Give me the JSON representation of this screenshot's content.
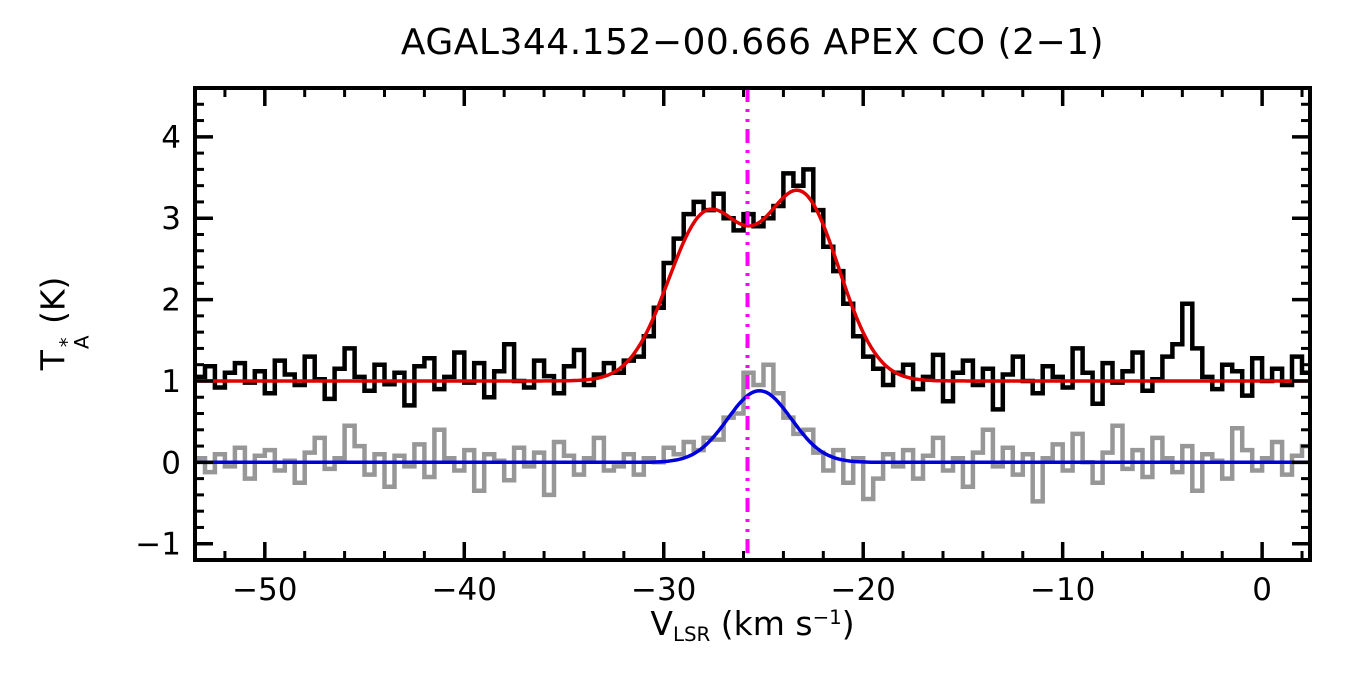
{
  "title": "AGAL344.152−00.666  APEX CO (2−1)",
  "xlabel": {
    "pre": "V",
    "sub": "LSR",
    "mid": " (km s",
    "sup": "−1",
    "post": ")"
  },
  "ylabel": {
    "pre": "T",
    "sup": "*",
    "sub": "A",
    "post": " (K)"
  },
  "chart_data": {
    "type": "line",
    "title": "AGAL344.152−00.666  APEX CO (2−1)",
    "xlabel": "V_LSR (km s^-1)",
    "ylabel": "T_A^* (K)",
    "x_range": [
      -53.5,
      2.4
    ],
    "y_range": [
      -1.2,
      4.6
    ],
    "x_ticks": [
      {
        "v": -50,
        "label": "−50"
      },
      {
        "v": -40,
        "label": "−40"
      },
      {
        "v": -30,
        "label": "−30"
      },
      {
        "v": -20,
        "label": "−20"
      },
      {
        "v": -10,
        "label": "−10"
      },
      {
        "v": 0,
        "label": "0"
      }
    ],
    "y_ticks": [
      {
        "v": -1,
        "label": "−1"
      },
      {
        "v": 0,
        "label": "0"
      },
      {
        "v": 1,
        "label": "1"
      },
      {
        "v": 2,
        "label": "2"
      },
      {
        "v": 3,
        "label": "3"
      },
      {
        "v": 4,
        "label": "4"
      }
    ],
    "x_minor_step": 2,
    "y_minor_step": 0.2,
    "x_start": -53.25,
    "dx": 0.5,
    "series": [
      {
        "name": "observed-spectrum",
        "style": "histogram",
        "color": "#000000",
        "width": 4.5,
        "values": [
          1.05,
          1.18,
          0.92,
          1.1,
          1.22,
          0.98,
          1.12,
          0.85,
          1.25,
          1.08,
          0.95,
          1.3,
          1.02,
          0.78,
          1.15,
          1.4,
          1.05,
          0.88,
          1.2,
          0.96,
          1.1,
          0.7,
          1.18,
          1.28,
          0.9,
          1.05,
          1.35,
          0.98,
          1.22,
          0.8,
          1.12,
          1.45,
          1.0,
          0.92,
          1.25,
          1.06,
          0.85,
          1.18,
          1.38,
          0.95,
          1.08,
          1.22,
          1.1,
          1.25,
          1.3,
          1.55,
          1.9,
          2.45,
          2.75,
          3.05,
          3.2,
          3.1,
          3.3,
          3.0,
          2.85,
          3.05,
          2.9,
          3.0,
          3.15,
          3.55,
          3.4,
          3.6,
          3.1,
          2.65,
          2.35,
          1.95,
          1.55,
          1.3,
          1.15,
          0.95,
          1.1,
          1.2,
          0.9,
          1.05,
          1.32,
          0.75,
          1.1,
          1.25,
          0.95,
          1.15,
          0.65,
          1.08,
          1.3,
          1.0,
          0.85,
          1.18,
          1.05,
          0.92,
          1.4,
          1.1,
          0.72,
          1.22,
          0.98,
          1.12,
          1.35,
          0.88,
          1.02,
          1.3,
          1.45,
          1.95,
          1.4,
          1.05,
          0.9,
          1.2,
          1.12,
          0.82,
          1.28,
          1.0,
          1.15,
          0.95,
          1.3,
          1.1
        ]
      },
      {
        "name": "second-spectrum",
        "style": "histogram",
        "color": "#979797",
        "width": 4.5,
        "values": [
          0.05,
          -0.12,
          0.1,
          -0.05,
          0.18,
          -0.2,
          0.08,
          0.15,
          -0.1,
          0.02,
          -0.25,
          0.12,
          0.3,
          -0.08,
          0.05,
          0.45,
          0.2,
          -0.15,
          0.1,
          -0.3,
          0.08,
          -0.05,
          0.22,
          -0.18,
          0.4,
          0.05,
          -0.1,
          0.15,
          -0.35,
          0.1,
          0.02,
          -0.22,
          0.18,
          -0.05,
          0.12,
          -0.4,
          0.25,
          0.08,
          -0.15,
          0.05,
          0.3,
          -0.1,
          -0.05,
          0.1,
          -0.15,
          0.05,
          0.0,
          0.18,
          0.1,
          0.25,
          0.15,
          0.3,
          0.28,
          0.55,
          0.6,
          1.1,
          0.95,
          1.2,
          0.85,
          0.55,
          0.35,
          0.4,
          0.12,
          -0.1,
          0.15,
          -0.25,
          0.05,
          -0.45,
          -0.2,
          0.1,
          -0.05,
          0.15,
          -0.2,
          0.08,
          0.3,
          -0.1,
          0.05,
          -0.3,
          0.12,
          0.4,
          -0.05,
          0.18,
          -0.15,
          0.1,
          -0.48,
          0.05,
          0.22,
          -0.1,
          0.35,
          0.0,
          -0.25,
          0.12,
          0.45,
          -0.08,
          0.15,
          -0.18,
          0.3,
          0.05,
          -0.12,
          0.2,
          -0.35,
          0.1,
          0.02,
          -0.2,
          0.42,
          0.15,
          -0.1,
          0.05,
          0.25,
          -0.15,
          0.08,
          0.2
        ]
      }
    ],
    "fits": [
      {
        "name": "red-two-gaussian-fit",
        "color": "#e00000",
        "width": 3.5,
        "baseline": 1.0,
        "components": [
          {
            "amp": 2.0,
            "center": -27.9,
            "sigma": 1.9
          },
          {
            "amp": 2.25,
            "center": -23.1,
            "sigma": 1.9
          }
        ]
      },
      {
        "name": "blue-gaussian-fit",
        "color": "#0000dd",
        "width": 3.5,
        "baseline": 0.0,
        "components": [
          {
            "amp": 0.88,
            "center": -25.2,
            "sigma": 1.6
          }
        ]
      }
    ],
    "marker": {
      "x": -25.8,
      "color": "#ff00ff",
      "width": 4,
      "style": "dash-dot-dot"
    },
    "grid": false,
    "legend": "none"
  }
}
